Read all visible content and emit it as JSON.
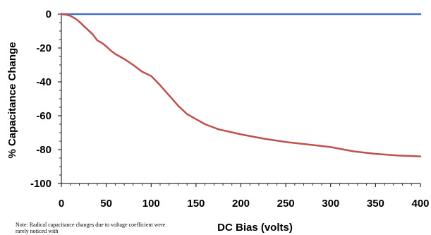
{
  "chart_data": {
    "type": "line",
    "title": "",
    "xlabel": "DC Bias (volts)",
    "ylabel": "% Capacitance Change",
    "xlim": [
      0,
      400
    ],
    "ylim": [
      -100,
      0
    ],
    "x_ticks": [
      0,
      50,
      100,
      150,
      200,
      250,
      300,
      350,
      400
    ],
    "y_ticks": [
      0,
      -20,
      -40,
      -60,
      -80,
      -100
    ],
    "x_tick_labels": [
      "0",
      "50",
      "100",
      "150",
      "200",
      "250",
      "300",
      "350",
      "400"
    ],
    "y_tick_labels": [
      "0",
      "-20",
      "-40",
      "-60",
      "-80",
      "-100"
    ],
    "grid": false,
    "series": [
      {
        "color": "#4472c4",
        "x": [
          0,
          400
        ],
        "y": [
          0,
          0
        ]
      },
      {
        "color": "#c0504d",
        "x": [
          0,
          5,
          10,
          15,
          20,
          25,
          30,
          35,
          40,
          45,
          50,
          55,
          60,
          65,
          70,
          80,
          90,
          100,
          110,
          120,
          130,
          140,
          150,
          160,
          175,
          200,
          225,
          250,
          275,
          300,
          325,
          350,
          375,
          400
        ],
        "y": [
          0,
          -0.3,
          -1,
          -2.5,
          -4.5,
          -7,
          -9.5,
          -12,
          -15.5,
          -17,
          -19,
          -21.5,
          -23.5,
          -25,
          -26.5,
          -30,
          -34,
          -36.5,
          -42,
          -48,
          -54,
          -59,
          -62,
          -65,
          -68,
          -71,
          -73.5,
          -75.5,
          -77,
          -78.5,
          -81,
          -82.5,
          -83.5,
          -84
        ]
      }
    ]
  },
  "note": "Note:  Radical capacitance changes due to voltage coefficient were rarely noticed with"
}
